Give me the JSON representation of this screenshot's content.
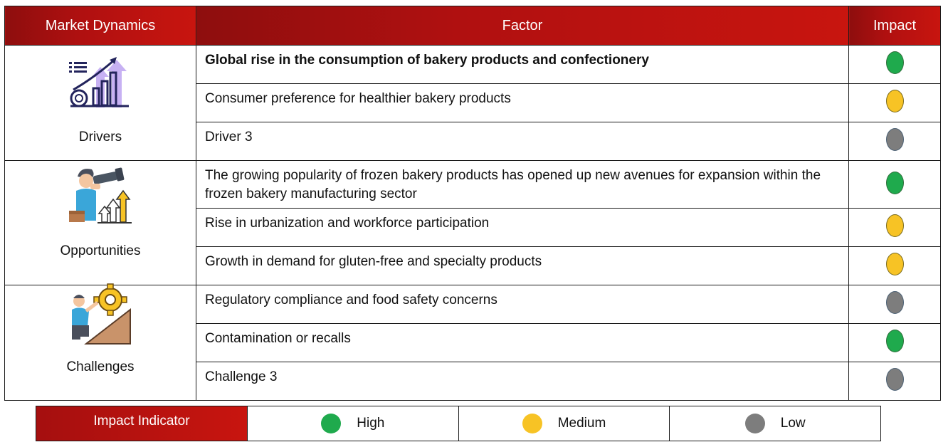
{
  "header": {
    "dynamics": "Market Dynamics",
    "factor": "Factor",
    "impact": "Impact"
  },
  "colors": {
    "high": "#1faa4d",
    "medium": "#f7c325",
    "low": "#7d7d7d",
    "header_red": "#b01010"
  },
  "categories": [
    {
      "label": "Drivers",
      "icon": "growth-chart-icon"
    },
    {
      "label": "Opportunities",
      "icon": "telescope-person-icon"
    },
    {
      "label": "Challenges",
      "icon": "climbing-gear-icon"
    }
  ],
  "rows": [
    {
      "factor": "Global rise in the consumption of bakery products and confectionery",
      "impact": "High"
    },
    {
      "factor": "Consumer preference for healthier bakery products",
      "impact": "Medium"
    },
    {
      "factor": "Driver 3",
      "impact": "Low"
    },
    {
      "factor": "The growing popularity of frozen bakery products has opened up new avenues for expansion within the frozen bakery manufacturing sector",
      "impact": "High"
    },
    {
      "factor": "Rise in urbanization and workforce participation",
      "impact": "Medium"
    },
    {
      "factor": "Growth in demand for gluten-free and specialty products",
      "impact": "Medium"
    },
    {
      "factor": "Regulatory compliance and food safety concerns",
      "impact": "Low"
    },
    {
      "factor": "Contamination or recalls",
      "impact": "High"
    },
    {
      "factor": "Challenge 3",
      "impact": "Low"
    }
  ],
  "legend": {
    "title": "Impact Indicator",
    "high": "High",
    "medium": "Medium",
    "low": "Low"
  }
}
